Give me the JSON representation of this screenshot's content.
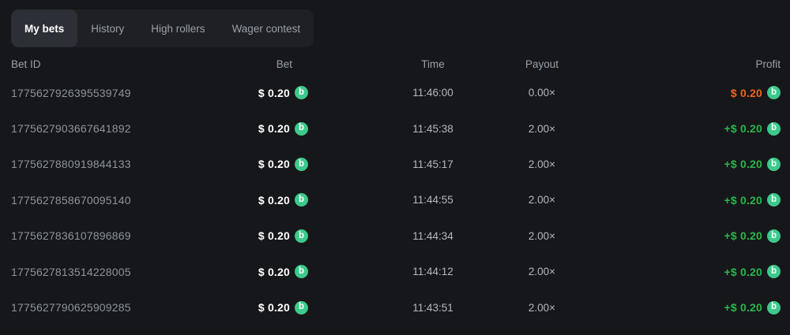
{
  "tabs": {
    "items": [
      {
        "label": "My bets",
        "state": "active"
      },
      {
        "label": "History",
        "state": "inactive"
      },
      {
        "label": "High rollers",
        "state": "inactive"
      },
      {
        "label": "Wager contest",
        "state": "inactive"
      }
    ]
  },
  "table": {
    "headers": {
      "bet_id": "Bet ID",
      "bet": "Bet",
      "time": "Time",
      "payout": "Payout",
      "profit": "Profit"
    },
    "coin_icon": {
      "label": "b",
      "color": "#3ec98c"
    },
    "rows": [
      {
        "bet_id": "1775627926395539749",
        "bet": "$ 0.20",
        "time": "11:46:00",
        "payout": "0.00×",
        "profit": "$ 0.20",
        "profit_type": "loss"
      },
      {
        "bet_id": "1775627903667641892",
        "bet": "$ 0.20",
        "time": "11:45:38",
        "payout": "2.00×",
        "profit": "+$ 0.20",
        "profit_type": "win"
      },
      {
        "bet_id": "1775627880919844133",
        "bet": "$ 0.20",
        "time": "11:45:17",
        "payout": "2.00×",
        "profit": "+$ 0.20",
        "profit_type": "win"
      },
      {
        "bet_id": "1775627858670095140",
        "bet": "$ 0.20",
        "time": "11:44:55",
        "payout": "2.00×",
        "profit": "+$ 0.20",
        "profit_type": "win"
      },
      {
        "bet_id": "1775627836107896869",
        "bet": "$ 0.20",
        "time": "11:44:34",
        "payout": "2.00×",
        "profit": "+$ 0.20",
        "profit_type": "win"
      },
      {
        "bet_id": "1775627813514228005",
        "bet": "$ 0.20",
        "time": "11:44:12",
        "payout": "2.00×",
        "profit": "+$ 0.20",
        "profit_type": "win"
      },
      {
        "bet_id": "1775627790625909285",
        "bet": "$ 0.20",
        "time": "11:43:51",
        "payout": "2.00×",
        "profit": "+$ 0.20",
        "profit_type": "win"
      }
    ]
  },
  "colors": {
    "background": "#16171a",
    "tab_bar_background": "#1e2024",
    "active_tab_background": "#2c2f35",
    "win_green": "#2bb54e",
    "loss_orange": "#ec661f",
    "coin_green": "#3ec98c"
  }
}
